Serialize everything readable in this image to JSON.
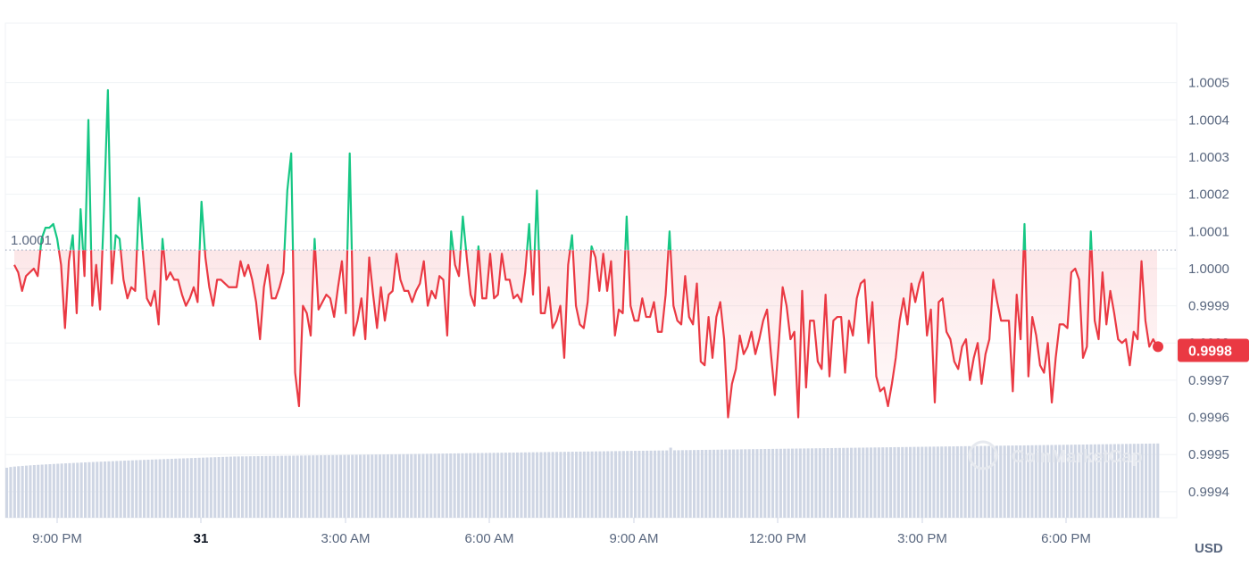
{
  "chart_data": {
    "type": "line",
    "x_ticks": [
      "9:00 PM",
      "31",
      "3:00 AM",
      "6:00 AM",
      "9:00 AM",
      "12:00 PM",
      "3:00 PM",
      "6:00 PM"
    ],
    "y_ticks": [
      "1.0005",
      "1.0004",
      "1.0003",
      "1.0002",
      "1.0001",
      "1.0000",
      "0.9999",
      "0.9998",
      "0.9997",
      "0.9996",
      "0.9995",
      "0.9994"
    ],
    "ylim": [
      0.99933,
      1.00066
    ],
    "reference_value": 1.00005,
    "reference_label": "1.0001",
    "current_price": 0.99978,
    "current_price_label": "0.9998",
    "currency": "USD",
    "watermark": "CoinMarketCap",
    "colors": {
      "up": "#16c784",
      "down": "#ea3943",
      "volume": "#cfd6e4",
      "grid": "#eff2f5"
    },
    "price": [
      1.00001,
      0.99999,
      0.99994,
      0.99998,
      0.99999,
      1.0,
      0.99998,
      1.00008,
      1.00011,
      1.00011,
      1.00012,
      1.00008,
      1.00001,
      0.99984,
      1.00002,
      1.00009,
      0.99988,
      1.00016,
      0.99998,
      1.0004,
      0.9999,
      1.00001,
      0.99989,
      1.00016,
      1.00048,
      0.99996,
      1.00009,
      1.00008,
      0.99997,
      0.99992,
      0.99995,
      0.99994,
      1.00019,
      1.00004,
      0.99992,
      0.9999,
      0.99994,
      0.99985,
      1.00008,
      0.99997,
      0.99999,
      0.99997,
      0.99997,
      0.99993,
      0.9999,
      0.99992,
      0.99995,
      0.99991,
      1.00018,
      1.00003,
      0.99995,
      0.9999,
      0.99997,
      0.99997,
      0.99996,
      0.99995,
      0.99995,
      0.99995,
      1.00002,
      0.99998,
      1.00001,
      0.99997,
      0.99991,
      0.99981,
      0.99995,
      1.00001,
      0.99992,
      0.99992,
      0.99995,
      0.99999,
      1.00021,
      1.00031,
      0.99972,
      0.99963,
      0.9999,
      0.99988,
      0.99982,
      1.00008,
      0.99989,
      0.99991,
      0.99993,
      0.99992,
      0.99987,
      0.99995,
      1.00002,
      0.99988,
      1.00031,
      0.99982,
      0.99986,
      0.99992,
      0.99981,
      1.00003,
      0.99993,
      0.99984,
      0.99995,
      0.99986,
      0.99993,
      0.99994,
      1.00004,
      0.99997,
      0.99994,
      0.99994,
      0.99991,
      0.99994,
      0.99996,
      1.00002,
      0.9999,
      0.99994,
      0.99992,
      0.99998,
      0.99997,
      0.99982,
      1.0001,
      1.00001,
      0.99998,
      1.00014,
      1.00003,
      0.99993,
      0.9999,
      1.00006,
      0.99992,
      0.99992,
      1.00004,
      0.99992,
      0.99993,
      1.00004,
      0.99997,
      0.99997,
      0.99992,
      0.99993,
      0.99991,
      0.99999,
      1.00012,
      0.99993,
      1.00021,
      0.99988,
      0.99988,
      0.99995,
      0.99984,
      0.99986,
      0.9999,
      0.99976,
      1.00001,
      1.00009,
      0.9999,
      0.99985,
      0.99984,
      0.99991,
      1.00006,
      1.00003,
      0.99994,
      1.00004,
      0.99994,
      1.00002,
      0.99982,
      0.99989,
      0.99988,
      1.00014,
      0.9999,
      0.99986,
      0.99986,
      0.99992,
      0.99987,
      0.99987,
      0.99991,
      0.99983,
      0.99983,
      0.99993,
      1.0001,
      0.9999,
      0.99986,
      0.99985,
      0.99998,
      0.99987,
      0.99985,
      0.99996,
      0.99975,
      0.99974,
      0.99987,
      0.99976,
      0.99987,
      0.99991,
      0.99981,
      0.9996,
      0.99969,
      0.99973,
      0.99982,
      0.99977,
      0.99979,
      0.99983,
      0.99977,
      0.99981,
      0.99986,
      0.99989,
      0.99977,
      0.99966,
      0.9998,
      0.99995,
      0.9999,
      0.99981,
      0.99983,
      0.9996,
      0.99994,
      0.99968,
      0.99986,
      0.99986,
      0.99975,
      0.99973,
      0.99993,
      0.99971,
      0.99986,
      0.99987,
      0.99987,
      0.99972,
      0.99986,
      0.99982,
      0.99992,
      0.99996,
      0.99997,
      0.9998,
      0.99991,
      0.99971,
      0.99967,
      0.99968,
      0.99963,
      0.99969,
      0.99976,
      0.99986,
      0.99992,
      0.99985,
      0.99996,
      0.99991,
      0.99996,
      0.99999,
      0.99982,
      0.99989,
      0.99964,
      0.99991,
      0.99992,
      0.99983,
      0.99981,
      0.99975,
      0.99973,
      0.99979,
      0.99981,
      0.9997,
      0.99976,
      0.9998,
      0.99969,
      0.99977,
      0.99981,
      0.99997,
      0.99991,
      0.99986,
      0.99986,
      0.99986,
      0.99967,
      0.99993,
      0.99981,
      1.00012,
      0.99971,
      0.99987,
      0.99982,
      0.99974,
      0.99972,
      0.9998,
      0.99964,
      0.99976,
      0.99985,
      0.99985,
      0.99984,
      0.99999,
      1.0,
      0.99997,
      0.99976,
      0.99979,
      1.0001,
      0.99986,
      0.99981,
      0.99999,
      0.99985,
      0.99994,
      0.99988,
      0.99981,
      0.9998,
      0.99981,
      0.99974,
      0.99983,
      0.99981,
      1.00002,
      0.99986,
      0.99979,
      0.99981,
      0.99979
    ]
  }
}
